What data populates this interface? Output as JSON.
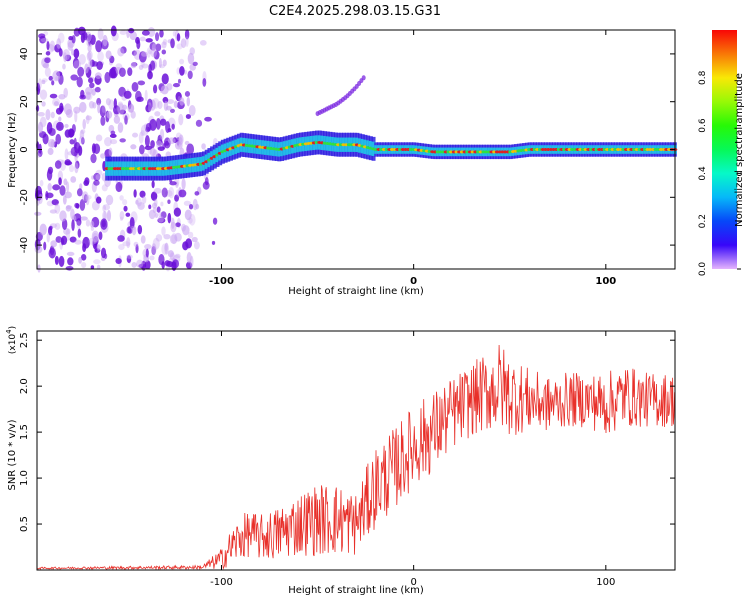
{
  "title": "C2E4.2025.298.03.15.G31",
  "chart_data": [
    {
      "type": "heatmap",
      "xlabel": "Height of straight line (km)",
      "ylabel": "Frequency (Hz)",
      "xlim": [
        -196,
        136
      ],
      "ylim": [
        -50,
        50
      ],
      "xticks": [
        -100,
        0,
        100
      ],
      "xtick_labels": [
        "-100",
        "0",
        "100"
      ],
      "yticks": [
        -40,
        -20,
        0,
        20,
        40
      ],
      "ytick_labels": [
        "-40",
        "-20",
        "0",
        "20",
        "40"
      ],
      "colorbar": {
        "label": "Normalized spectral amplitude",
        "range": [
          0,
          1
        ],
        "ticks": [
          0,
          0.2,
          0.4,
          0.6,
          0.8
        ],
        "tick_labels": [
          "0.0",
          "0.2",
          "0.4",
          "0.6",
          "0.8"
        ]
      },
      "features": {
        "noise_region_x": [
          -196,
          -115
        ],
        "signal_trace": {
          "x": [
            -160,
            -150,
            -140,
            -130,
            -120,
            -110,
            -100,
            -90,
            -80,
            -70,
            -60,
            -50,
            -40,
            -30,
            -25,
            -20,
            -10,
            0,
            10,
            20,
            30,
            40,
            50,
            60,
            70,
            80,
            90,
            100,
            110,
            120,
            136
          ],
          "frequency": [
            -8,
            -8,
            -8,
            -8,
            -7,
            -6,
            -1,
            2,
            1,
            0,
            2,
            3,
            2,
            2,
            1,
            0,
            0,
            0,
            -1,
            -1,
            -1,
            -1,
            -1,
            0,
            0,
            0,
            0,
            0,
            0,
            0,
            0
          ]
        },
        "side_branch": {
          "x": [
            -50,
            -45,
            -40,
            -35,
            -30,
            -25
          ],
          "frequency": [
            15,
            17,
            19,
            22,
            26,
            31
          ]
        }
      }
    },
    {
      "type": "line",
      "xlabel": "Height of straight line (km)",
      "ylabel": "SNR (10 * v/v)",
      "y_multiplier_label": "(x10",
      "y_multiplier_exp": "4",
      "y_multiplier_close": ")",
      "xlim": [
        -196,
        136
      ],
      "ylim": [
        0,
        2.6
      ],
      "xticks": [
        -100,
        0,
        100
      ],
      "xtick_labels": [
        "-100",
        "0",
        "100"
      ],
      "yticks": [
        0.5,
        1.0,
        1.5,
        2.0,
        2.5
      ],
      "ytick_labels": [
        "0.5",
        "1.0",
        "1.5",
        "2.0",
        "2.5"
      ],
      "series": [
        {
          "name": "SNR",
          "color": "#e8302a",
          "envelope": {
            "x": [
              -196,
              -110,
              -100,
              -95,
              -90,
              -85,
              -80,
              -70,
              -60,
              -50,
              -40,
              -30,
              -25,
              -20,
              -10,
              0,
              10,
              20,
              30,
              40,
              45,
              50,
              60,
              70,
              80,
              90,
              100,
              110,
              120,
              136
            ],
            "mean": [
              0.02,
              0.03,
              0.12,
              0.25,
              0.35,
              0.4,
              0.35,
              0.4,
              0.5,
              0.55,
              0.55,
              0.5,
              0.7,
              0.9,
              1.1,
              1.35,
              1.5,
              1.7,
              1.85,
              1.95,
              2.0,
              1.9,
              1.85,
              1.8,
              1.85,
              1.85,
              1.8,
              1.9,
              1.85,
              1.85
            ],
            "spread": [
              0.01,
              0.02,
              0.12,
              0.2,
              0.25,
              0.25,
              0.25,
              0.3,
              0.35,
              0.4,
              0.4,
              0.35,
              0.4,
              0.45,
              0.45,
              0.45,
              0.45,
              0.4,
              0.4,
              0.45,
              0.5,
              0.45,
              0.35,
              0.3,
              0.3,
              0.3,
              0.35,
              0.35,
              0.3,
              0.3
            ]
          }
        }
      ]
    }
  ]
}
